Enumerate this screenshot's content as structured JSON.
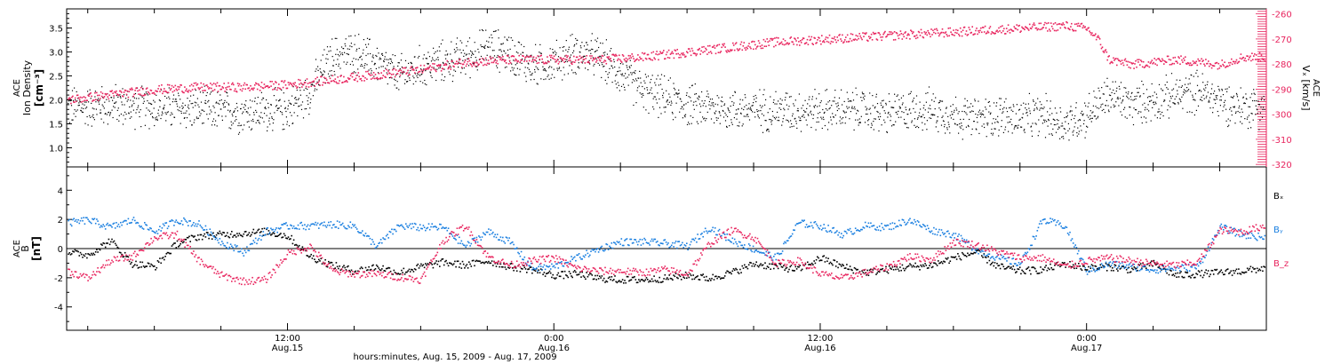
{
  "colors": {
    "black": "#000000",
    "pink": "#e8245e",
    "blue": "#1a7fe0"
  },
  "top_panel": {
    "ylabel_left_line1": "ACE",
    "ylabel_left_line2": "Ion Density",
    "ylabel_left_unit": "[cm⁻³]",
    "ylabel_right_line1": "ACE",
    "ylabel_right_main": "Vₓ [km/s]"
  },
  "bottom_panel": {
    "ylabel_line1": "ACE",
    "ylabel_line2": "B",
    "ylabel_unit": "[nT]",
    "legend": [
      "Bₓ",
      "Bᵧ",
      "B_z"
    ]
  },
  "x_axis": {
    "ticks": [
      {
        "time": "12:00",
        "date": "Aug.15"
      },
      {
        "time": "0:00",
        "date": "Aug.16"
      },
      {
        "time": "12:00",
        "date": "Aug.16"
      },
      {
        "time": "0:00",
        "date": "Aug.17"
      }
    ],
    "xlabel": "hours:minutes, Aug. 15, 2009 - Aug. 17, 2009"
  },
  "chart_data": [
    {
      "type": "scatter",
      "panel": "top",
      "x_unit": "hours since 2009-08-15 00:00",
      "xlim": [
        2.05,
        56.1
      ],
      "left_axis": {
        "ylim": [
          0.6,
          3.9
        ],
        "ticks": [
          1.0,
          1.5,
          2.0,
          2.5,
          3.0,
          3.5
        ]
      },
      "right_axis": {
        "ylim": [
          -321,
          -258
        ],
        "ticks": [
          -260,
          -270,
          -280,
          -290,
          -300,
          -310,
          -320
        ]
      },
      "series": [
        {
          "name": "Ion Density",
          "axis": "left",
          "color": "black",
          "x": [
            2.1,
            4,
            6,
            8,
            10,
            12,
            13,
            14,
            15,
            16,
            17,
            18,
            19,
            20,
            21,
            22,
            23,
            24,
            25,
            26,
            28,
            30,
            32,
            34,
            36,
            38,
            39,
            40,
            41,
            42,
            43,
            44,
            45,
            46,
            47,
            48,
            49,
            50,
            51,
            52,
            53,
            54,
            55,
            56
          ],
          "y": [
            1.85,
            1.9,
            1.85,
            1.8,
            1.75,
            1.8,
            2.2,
            2.9,
            3.0,
            2.8,
            2.5,
            2.7,
            2.8,
            2.9,
            3.1,
            3.0,
            2.7,
            2.8,
            3.0,
            2.9,
            2.2,
            1.9,
            1.8,
            1.8,
            1.8,
            1.8,
            1.7,
            1.8,
            1.8,
            1.7,
            1.6,
            1.7,
            1.6,
            1.7,
            1.5,
            1.7,
            2.1,
            1.9,
            2.0,
            2.1,
            2.2,
            2.0,
            1.85,
            1.9
          ],
          "spread": 0.35
        },
        {
          "name": "Vx",
          "axis": "right",
          "color": "pink",
          "x": [
            2.1,
            4,
            6,
            8,
            10,
            12,
            14,
            16,
            18,
            20,
            22,
            24,
            26,
            28,
            30,
            32,
            34,
            36,
            38,
            40,
            42,
            44,
            46,
            47,
            48,
            48.5,
            49,
            50,
            51,
            52,
            53,
            54,
            55,
            56
          ],
          "y": [
            -294,
            -292,
            -290,
            -289,
            -289,
            -288,
            -286,
            -284,
            -282,
            -279,
            -278,
            -278,
            -278,
            -277,
            -275,
            -273,
            -271,
            -270,
            -269,
            -268,
            -267,
            -266,
            -265,
            -264.5,
            -265.5,
            -270,
            -278,
            -280,
            -279,
            -278,
            -279,
            -280,
            -277,
            -277
          ],
          "spread": 1.8
        }
      ]
    },
    {
      "type": "scatter",
      "panel": "bottom",
      "x_unit": "hours since 2009-08-15 00:00",
      "xlim": [
        2.05,
        56.1
      ],
      "ylim": [
        -5.6,
        5.6
      ],
      "ticks": [
        -4,
        -2,
        0,
        2,
        4
      ],
      "zero_line": true,
      "series": [
        {
          "name": "Bx",
          "color": "black",
          "x": [
            2.1,
            3,
            4,
            5,
            6,
            7,
            8,
            9,
            10,
            11,
            12,
            13,
            14,
            15,
            16,
            17,
            18,
            19,
            20,
            21,
            22,
            23,
            24,
            25,
            26,
            27,
            28,
            29,
            30,
            31,
            32,
            33,
            34,
            35,
            36,
            37,
            38,
            39,
            40,
            41,
            42,
            43,
            44,
            45,
            46,
            47,
            48,
            49,
            50,
            51,
            52,
            53,
            54,
            55,
            56
          ],
          "y": [
            -0.2,
            -0.4,
            0.6,
            -1.0,
            -1.2,
            0.4,
            0.9,
            1.0,
            1.1,
            1.2,
            0.9,
            -0.5,
            -1.1,
            -1.5,
            -1.2,
            -1.6,
            -1.2,
            -0.9,
            -1.1,
            -0.8,
            -1.2,
            -1.4,
            -1.8,
            -1.7,
            -2.0,
            -2.1,
            -2.1,
            -2.0,
            -1.8,
            -2.0,
            -1.6,
            -1.0,
            -1.2,
            -1.4,
            -0.6,
            -1.2,
            -1.6,
            -1.4,
            -1.2,
            -1.1,
            -0.6,
            -0.2,
            -1.2,
            -1.5,
            -1.4,
            -1.0,
            -1.3,
            -1.2,
            -1.4,
            -1.0,
            -1.8,
            -1.7,
            -1.6,
            -1.5,
            -1.3
          ],
          "spread": 0.25
        },
        {
          "name": "By",
          "color": "blue",
          "x": [
            2.1,
            3,
            4,
            5,
            6,
            7,
            8,
            9,
            10,
            11,
            12,
            13,
            14,
            15,
            16,
            17,
            18,
            19,
            20,
            21,
            22,
            23,
            24,
            25,
            26,
            27,
            28,
            29,
            30,
            31,
            32,
            33,
            34,
            35,
            36,
            37,
            38,
            39,
            40,
            41,
            42,
            43,
            44,
            45,
            46,
            47,
            48,
            49,
            50,
            51,
            52,
            53,
            54,
            55,
            56
          ],
          "y": [
            1.8,
            2.0,
            1.5,
            2.0,
            1.2,
            2.0,
            1.7,
            0.5,
            -0.2,
            1.2,
            1.6,
            1.6,
            1.7,
            1.6,
            0.2,
            1.6,
            1.5,
            1.5,
            0.2,
            1.2,
            0.5,
            -1.3,
            -1.2,
            -0.6,
            0.0,
            0.5,
            0.5,
            0.4,
            0.2,
            1.5,
            0.6,
            0.0,
            -0.6,
            1.8,
            1.6,
            1.0,
            1.6,
            1.5,
            2.0,
            1.3,
            1.0,
            0.0,
            -0.6,
            -1.0,
            2.0,
            1.6,
            -1.5,
            -1.0,
            -1.2,
            -1.4,
            -1.3,
            -1.2,
            1.5,
            1.0,
            0.8
          ],
          "spread": 0.25
        },
        {
          "name": "Bz",
          "color": "pink",
          "x": [
            2.1,
            3,
            4,
            5,
            6,
            7,
            8,
            9,
            10,
            11,
            12,
            13,
            14,
            15,
            16,
            17,
            18,
            19,
            20,
            21,
            22,
            23,
            24,
            25,
            26,
            27,
            28,
            29,
            30,
            31,
            32,
            33,
            34,
            35,
            36,
            37,
            38,
            39,
            40,
            41,
            42,
            43,
            44,
            45,
            46,
            47,
            48,
            49,
            50,
            51,
            52,
            53,
            54,
            55,
            56
          ],
          "y": [
            -1.5,
            -2.0,
            -0.8,
            -0.5,
            0.8,
            1.0,
            -0.8,
            -1.8,
            -2.2,
            -2.1,
            -0.3,
            0.2,
            -1.5,
            -1.7,
            -1.7,
            -1.9,
            -2.1,
            0.6,
            1.6,
            -0.5,
            -1.1,
            -0.8,
            -0.6,
            -1.3,
            -1.5,
            -1.5,
            -1.6,
            -1.4,
            -1.7,
            0.4,
            1.3,
            0.8,
            -1.0,
            -0.8,
            -1.7,
            -2.0,
            -1.6,
            -1.2,
            -0.5,
            -0.7,
            0.5,
            0.3,
            -0.2,
            -0.6,
            -0.6,
            -1.2,
            -0.8,
            -0.6,
            -0.8,
            -1.0,
            -1.1,
            -0.9,
            1.3,
            1.2,
            1.6
          ],
          "spread": 0.25
        }
      ]
    }
  ]
}
